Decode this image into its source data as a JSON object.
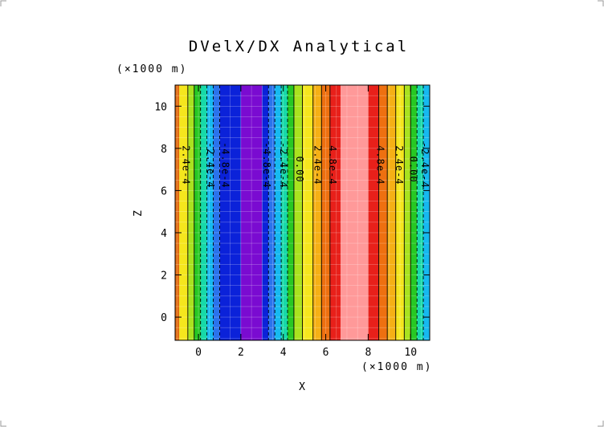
{
  "chart_data": {
    "type": "heatmap",
    "title": "DVelX/DX Analytical",
    "xlabel": "X",
    "ylabel": "Z",
    "x_unit_label": "(×1000 m)",
    "y_unit_label": "(×1000 m)",
    "xlim": [
      -1.1,
      10.9
    ],
    "ylim": [
      -1.1,
      11.0
    ],
    "x_ticks": [
      0,
      2,
      4,
      6,
      8,
      10
    ],
    "y_ticks": [
      0,
      2,
      4,
      6,
      8,
      10
    ],
    "x_tick_labels": [
      "0",
      "2",
      "4",
      "6",
      "8",
      "10"
    ],
    "y_tick_labels": [
      "0",
      "2",
      "4",
      "6",
      "8",
      "10"
    ],
    "bands": [
      {
        "x0": -1.1,
        "x1": -0.9,
        "color": "#e26a10"
      },
      {
        "x0": -0.9,
        "x1": -0.5,
        "color": "#f5e61d"
      },
      {
        "x0": -0.5,
        "x1": -0.2,
        "color": "#a9e21f"
      },
      {
        "x0": -0.2,
        "x1": 0.1,
        "color": "#27c823"
      },
      {
        "x0": 0.1,
        "x1": 0.4,
        "color": "#17d9a8"
      },
      {
        "x0": 0.4,
        "x1": 0.7,
        "color": "#16b9f0"
      },
      {
        "x0": 0.7,
        "x1": 1.0,
        "color": "#2a73ec"
      },
      {
        "x0": 1.0,
        "x1": 2.0,
        "color": "#0b22d9"
      },
      {
        "x0": 2.0,
        "x1": 3.0,
        "color": "#7a0bd1"
      },
      {
        "x0": 3.0,
        "x1": 3.3,
        "color": "#0b22d9"
      },
      {
        "x0": 3.3,
        "x1": 3.6,
        "color": "#2a73ec"
      },
      {
        "x0": 3.6,
        "x1": 3.9,
        "color": "#16b9f0"
      },
      {
        "x0": 3.9,
        "x1": 4.2,
        "color": "#17d9a8"
      },
      {
        "x0": 4.2,
        "x1": 4.5,
        "color": "#27c823"
      },
      {
        "x0": 4.5,
        "x1": 4.9,
        "color": "#a9e21f"
      },
      {
        "x0": 4.9,
        "x1": 5.4,
        "color": "#f5e61d"
      },
      {
        "x0": 5.4,
        "x1": 5.8,
        "color": "#f5b015"
      },
      {
        "x0": 5.8,
        "x1": 6.2,
        "color": "#ee7010"
      },
      {
        "x0": 6.2,
        "x1": 6.7,
        "color": "#e8201a"
      },
      {
        "x0": 6.7,
        "x1": 8.0,
        "color": "#ff9999"
      },
      {
        "x0": 8.0,
        "x1": 8.5,
        "color": "#e8201a"
      },
      {
        "x0": 8.5,
        "x1": 8.9,
        "color": "#ee7010"
      },
      {
        "x0": 8.9,
        "x1": 9.3,
        "color": "#f5b015"
      },
      {
        "x0": 9.3,
        "x1": 9.7,
        "color": "#f5e61d"
      },
      {
        "x0": 9.7,
        "x1": 10.0,
        "color": "#a9e21f"
      },
      {
        "x0": 10.0,
        "x1": 10.3,
        "color": "#27c823"
      },
      {
        "x0": 10.3,
        "x1": 10.6,
        "color": "#17d9a8"
      },
      {
        "x0": 10.6,
        "x1": 10.9,
        "color": "#16b9f0"
      }
    ],
    "contour_lines": [
      {
        "x": -0.5,
        "dashed": false
      },
      {
        "x": -0.2,
        "dashed": false
      },
      {
        "x": 0.1,
        "dashed": true
      },
      {
        "x": 0.4,
        "dashed": true
      },
      {
        "x": 0.7,
        "dashed": true
      },
      {
        "x": 1.0,
        "dashed": true
      },
      {
        "x": 3.3,
        "dashed": true
      },
      {
        "x": 3.6,
        "dashed": true
      },
      {
        "x": 3.9,
        "dashed": true
      },
      {
        "x": 4.2,
        "dashed": true
      },
      {
        "x": 4.5,
        "dashed": false
      },
      {
        "x": 4.9,
        "dashed": false
      },
      {
        "x": 5.4,
        "dashed": false
      },
      {
        "x": 5.8,
        "dashed": false
      },
      {
        "x": 6.2,
        "dashed": false
      },
      {
        "x": 8.5,
        "dashed": false
      },
      {
        "x": 8.9,
        "dashed": false
      },
      {
        "x": 9.3,
        "dashed": false
      },
      {
        "x": 9.7,
        "dashed": false
      },
      {
        "x": 10.0,
        "dashed": false
      },
      {
        "x": 10.3,
        "dashed": true
      },
      {
        "x": 10.6,
        "dashed": true
      }
    ],
    "contour_labels": [
      {
        "text": "2.4e-4",
        "x": -0.6,
        "z": 7.2
      },
      {
        "text": "-2.4e-4",
        "x": 0.55,
        "z": 7.2
      },
      {
        "text": "-4.8e-4",
        "x": 1.25,
        "z": 7.2
      },
      {
        "text": "-4.8e-4",
        "x": 3.2,
        "z": 7.2
      },
      {
        "text": "-2.4e-4",
        "x": 4.0,
        "z": 7.2
      },
      {
        "text": "0.00",
        "x": 4.75,
        "z": 7.0
      },
      {
        "text": "2.4e-4",
        "x": 5.6,
        "z": 7.2
      },
      {
        "text": "4.8e-4",
        "x": 6.3,
        "z": 7.2
      },
      {
        "text": "4.8e-4",
        "x": 8.55,
        "z": 7.2
      },
      {
        "text": "2.4e-4",
        "x": 9.45,
        "z": 7.2
      },
      {
        "text": "0.00",
        "x": 10.1,
        "z": 7.0
      },
      {
        "text": "-2.4e-4",
        "x": 10.65,
        "z": 7.2
      }
    ],
    "grid": true,
    "legend": "none"
  }
}
